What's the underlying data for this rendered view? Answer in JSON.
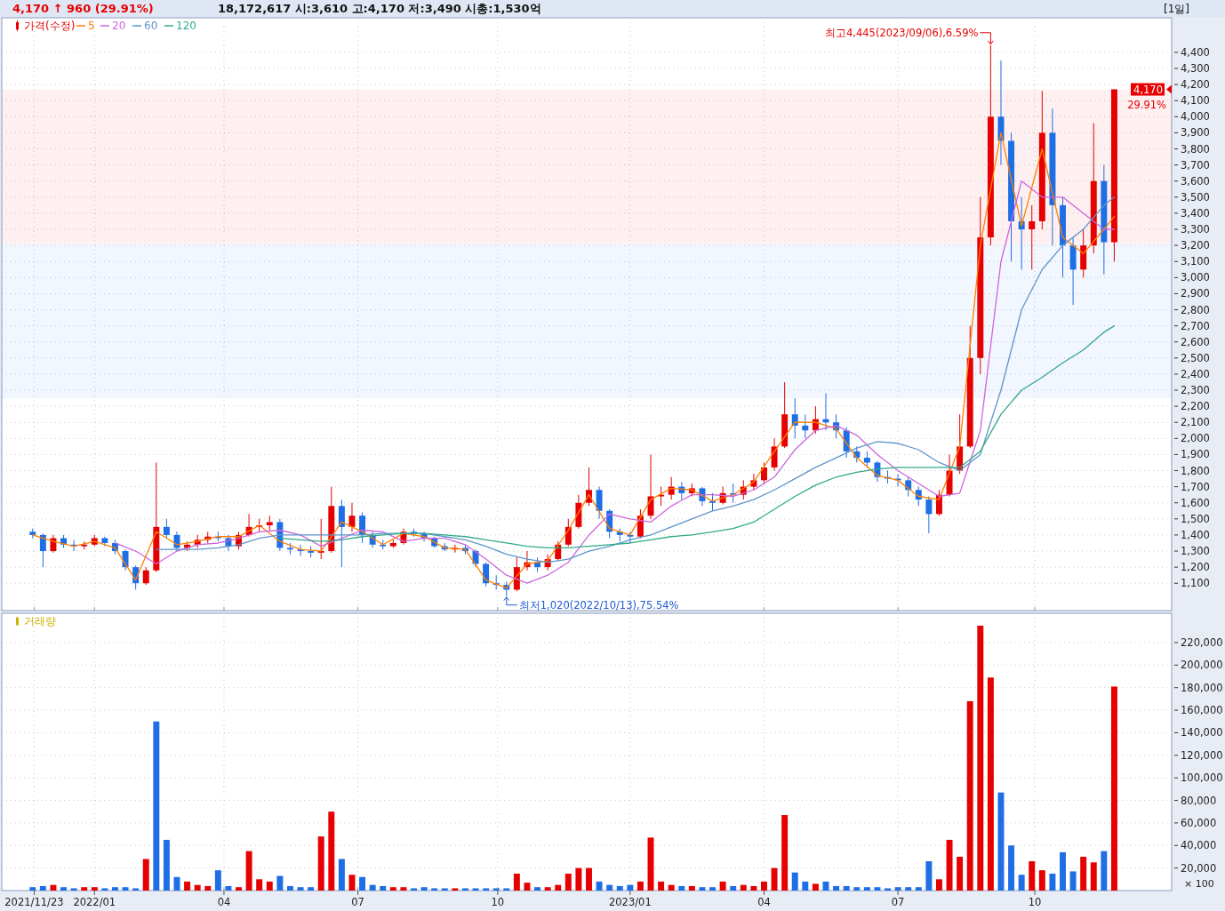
{
  "chart_data": [
    {
      "type": "candlestick",
      "title": "4,170 ↑ 960 (29.91%)",
      "subtitle": "18,172,617  시:3,610  고:4,170  저:3,490  시총:1,530억",
      "xlim": [
        "2021-11-01",
        "2024-01-05"
      ],
      "xticks": [
        {
          "value": "2021-11-23",
          "label": null
        },
        {
          "value": "2022-01-03",
          "label": null
        },
        {
          "value": "2022-04-01",
          "label": null
        },
        {
          "value": "2022-07-01",
          "label": null
        },
        {
          "value": "2022-10-04",
          "label": null
        },
        {
          "value": "2023-01-02",
          "label": null
        },
        {
          "value": "2023-04-03",
          "label": null
        },
        {
          "value": "2023-07-03",
          "label": null
        },
        {
          "value": "2023-10-04",
          "label": null
        }
      ],
      "ylim": [
        930,
        4615
      ],
      "yticks": [
        {
          "value": 1100,
          "label": "1,100"
        },
        {
          "value": 1200,
          "label": "1,200"
        },
        {
          "value": 1300,
          "label": "1,300"
        },
        {
          "value": 1400,
          "label": "1,400"
        },
        {
          "value": 1500,
          "label": "1,500"
        },
        {
          "value": 1600,
          "label": "1,600"
        },
        {
          "value": 1700,
          "label": "1,700"
        },
        {
          "value": 1800,
          "label": "1,800"
        },
        {
          "value": 1900,
          "label": "1,900"
        },
        {
          "value": 2000,
          "label": "2,000"
        },
        {
          "value": 2100,
          "label": "2,100"
        },
        {
          "value": 2200,
          "label": "2,200"
        },
        {
          "value": 2300,
          "label": "2,300"
        },
        {
          "value": 2400,
          "label": "2,400"
        },
        {
          "value": 2500,
          "label": "2,500"
        },
        {
          "value": 2600,
          "label": "2,600"
        },
        {
          "value": 2700,
          "label": "2,700"
        },
        {
          "value": 2800,
          "label": "2,800"
        },
        {
          "value": 2900,
          "label": "2,900"
        },
        {
          "value": 3000,
          "label": "3,000"
        },
        {
          "value": 3100,
          "label": "3,100"
        },
        {
          "value": 3200,
          "label": "3,200"
        },
        {
          "value": 3300,
          "label": "3,300"
        },
        {
          "value": 3400,
          "label": "3,400"
        },
        {
          "value": 3500,
          "label": "3,500"
        },
        {
          "value": 3600,
          "label": "3,600"
        },
        {
          "value": 3700,
          "label": "3,700"
        },
        {
          "value": 3800,
          "label": "3,800"
        },
        {
          "value": 3900,
          "label": "3,900"
        },
        {
          "value": 4000,
          "label": "4,000"
        },
        {
          "value": 4100,
          "label": "4,100"
        },
        {
          "value": 4200,
          "label": "4,200"
        },
        {
          "value": 4300,
          "label": "4,300"
        },
        {
          "value": 4400,
          "label": "4,400"
        }
      ],
      "tick_labels": "y",
      "grid": true,
      "legend": "top left",
      "series": [
        {
          "name": "가격(수정)",
          "color": "#e60000",
          "x": [
            "2021-11-22",
            "2021-11-29",
            "2021-12-06",
            "2021-12-13",
            "2021-12-20",
            "2021-12-27",
            "2022-01-03",
            "2022-01-10",
            "2022-01-17",
            "2022-01-24",
            "2022-01-31",
            "2022-02-07",
            "2022-02-14",
            "2022-02-21",
            "2022-02-28",
            "2022-03-07",
            "2022-03-14",
            "2022-03-21",
            "2022-03-28",
            "2022-04-04",
            "2022-04-11",
            "2022-04-18",
            "2022-04-25",
            "2022-05-02",
            "2022-05-09",
            "2022-05-16",
            "2022-05-23",
            "2022-05-30",
            "2022-06-06",
            "2022-06-13",
            "2022-06-20",
            "2022-06-27",
            "2022-07-04",
            "2022-07-11",
            "2022-07-18",
            "2022-07-25",
            "2022-08-01",
            "2022-08-08",
            "2022-08-15",
            "2022-08-22",
            "2022-08-29",
            "2022-09-05",
            "2022-09-12",
            "2022-09-19",
            "2022-09-26",
            "2022-10-03",
            "2022-10-10",
            "2022-10-17",
            "2022-10-24",
            "2022-10-31",
            "2022-11-07",
            "2022-11-14",
            "2022-11-21",
            "2022-11-28",
            "2022-12-05",
            "2022-12-12",
            "2022-12-19",
            "2022-12-26",
            "2023-01-02",
            "2023-01-09",
            "2023-01-16",
            "2023-01-23",
            "2023-01-30",
            "2023-02-06",
            "2023-02-13",
            "2023-02-20",
            "2023-02-27",
            "2023-03-06",
            "2023-03-13",
            "2023-03-20",
            "2023-03-27",
            "2023-04-03",
            "2023-04-10",
            "2023-04-17",
            "2023-04-24",
            "2023-05-01",
            "2023-05-08",
            "2023-05-15",
            "2023-05-22",
            "2023-05-29",
            "2023-06-05",
            "2023-06-12",
            "2023-06-19",
            "2023-06-26",
            "2023-07-03",
            "2023-07-10",
            "2023-07-17",
            "2023-07-24",
            "2023-07-31",
            "2023-08-07",
            "2023-08-14",
            "2023-08-21",
            "2023-08-28",
            "2023-09-04",
            "2023-09-11",
            "2023-09-18",
            "2023-09-25",
            "2023-10-02",
            "2023-10-09",
            "2023-10-16",
            "2023-10-23",
            "2023-10-30",
            "2023-11-06",
            "2023-11-13",
            "2023-11-20",
            "2023-11-27"
          ],
          "ohlc": [
            [
              1420,
              1440,
              1380,
              1400
            ],
            [
              1400,
              1410,
              1200,
              1300
            ],
            [
              1300,
              1400,
              1290,
              1380
            ],
            [
              1380,
              1400,
              1320,
              1340
            ],
            [
              1340,
              1370,
              1300,
              1330
            ],
            [
              1330,
              1360,
              1310,
              1340
            ],
            [
              1340,
              1400,
              1330,
              1380
            ],
            [
              1380,
              1390,
              1330,
              1350
            ],
            [
              1350,
              1370,
              1280,
              1300
            ],
            [
              1300,
              1310,
              1180,
              1200
            ],
            [
              1200,
              1210,
              1060,
              1100
            ],
            [
              1100,
              1200,
              1090,
              1180
            ],
            [
              1180,
              1850,
              1170,
              1450
            ],
            [
              1450,
              1500,
              1380,
              1400
            ],
            [
              1400,
              1420,
              1300,
              1320
            ],
            [
              1320,
              1360,
              1300,
              1340
            ],
            [
              1340,
              1400,
              1320,
              1370
            ],
            [
              1370,
              1420,
              1350,
              1390
            ],
            [
              1390,
              1420,
              1360,
              1380
            ],
            [
              1380,
              1400,
              1300,
              1330
            ],
            [
              1330,
              1420,
              1310,
              1400
            ],
            [
              1400,
              1530,
              1390,
              1450
            ],
            [
              1450,
              1500,
              1420,
              1460
            ],
            [
              1460,
              1520,
              1430,
              1480
            ],
            [
              1480,
              1500,
              1300,
              1320
            ],
            [
              1320,
              1350,
              1280,
              1310
            ],
            [
              1310,
              1340,
              1270,
              1300
            ],
            [
              1300,
              1330,
              1260,
              1290
            ],
            [
              1290,
              1500,
              1250,
              1300
            ],
            [
              1300,
              1700,
              1290,
              1580
            ],
            [
              1580,
              1620,
              1200,
              1450
            ],
            [
              1450,
              1600,
              1420,
              1520
            ],
            [
              1520,
              1540,
              1350,
              1400
            ],
            [
              1400,
              1420,
              1320,
              1340
            ],
            [
              1340,
              1370,
              1310,
              1330
            ],
            [
              1330,
              1370,
              1320,
              1350
            ],
            [
              1350,
              1440,
              1340,
              1420
            ],
            [
              1420,
              1440,
              1390,
              1410
            ],
            [
              1410,
              1420,
              1360,
              1380
            ],
            [
              1380,
              1390,
              1320,
              1330
            ],
            [
              1330,
              1350,
              1300,
              1310
            ],
            [
              1310,
              1340,
              1290,
              1320
            ],
            [
              1320,
              1340,
              1280,
              1300
            ],
            [
              1300,
              1310,
              1200,
              1220
            ],
            [
              1220,
              1230,
              1080,
              1100
            ],
            [
              1100,
              1150,
              1060,
              1090
            ],
            [
              1090,
              1110,
              1020,
              1060
            ],
            [
              1060,
              1260,
              1050,
              1200
            ],
            [
              1200,
              1300,
              1180,
              1230
            ],
            [
              1230,
              1260,
              1170,
              1200
            ],
            [
              1200,
              1280,
              1180,
              1250
            ],
            [
              1250,
              1360,
              1240,
              1340
            ],
            [
              1340,
              1500,
              1330,
              1450
            ],
            [
              1450,
              1650,
              1440,
              1600
            ],
            [
              1600,
              1820,
              1580,
              1680
            ],
            [
              1680,
              1700,
              1500,
              1550
            ],
            [
              1550,
              1560,
              1380,
              1420
            ],
            [
              1420,
              1440,
              1360,
              1400
            ],
            [
              1400,
              1420,
              1350,
              1390
            ],
            [
              1390,
              1560,
              1380,
              1520
            ],
            [
              1520,
              1900,
              1500,
              1640
            ],
            [
              1640,
              1700,
              1580,
              1650
            ],
            [
              1650,
              1760,
              1620,
              1700
            ],
            [
              1700,
              1730,
              1620,
              1660
            ],
            [
              1660,
              1720,
              1640,
              1690
            ],
            [
              1690,
              1700,
              1580,
              1610
            ],
            [
              1610,
              1660,
              1550,
              1600
            ],
            [
              1600,
              1700,
              1590,
              1660
            ],
            [
              1660,
              1720,
              1600,
              1650
            ],
            [
              1650,
              1740,
              1620,
              1700
            ],
            [
              1700,
              1780,
              1680,
              1740
            ],
            [
              1740,
              1850,
              1720,
              1820
            ],
            [
              1820,
              2000,
              1800,
              1950
            ],
            [
              1950,
              2350,
              1940,
              2150
            ],
            [
              2150,
              2250,
              2000,
              2080
            ],
            [
              2080,
              2150,
              2000,
              2050
            ],
            [
              2050,
              2200,
              2030,
              2120
            ],
            [
              2120,
              2280,
              2050,
              2100
            ],
            [
              2100,
              2150,
              2000,
              2050
            ],
            [
              2050,
              2070,
              1880,
              1920
            ],
            [
              1920,
              1950,
              1850,
              1880
            ],
            [
              1880,
              1920,
              1820,
              1850
            ],
            [
              1850,
              1860,
              1730,
              1760
            ],
            [
              1760,
              1800,
              1720,
              1750
            ],
            [
              1750,
              1780,
              1700,
              1740
            ],
            [
              1740,
              1760,
              1640,
              1680
            ],
            [
              1680,
              1700,
              1580,
              1620
            ],
            [
              1620,
              1640,
              1410,
              1530
            ],
            [
              1530,
              1680,
              1520,
              1650
            ],
            [
              1650,
              1900,
              1640,
              1800
            ],
            [
              1800,
              2150,
              1780,
              1950
            ],
            [
              1950,
              2700,
              1940,
              2500
            ],
            [
              2500,
              3500,
              2400,
              3250
            ],
            [
              3250,
              4445,
              3200,
              4000
            ],
            [
              4000,
              4350,
              3700,
              3850
            ],
            [
              3850,
              3900,
              3100,
              3350
            ],
            [
              3350,
              3500,
              3050,
              3300
            ],
            [
              3300,
              3450,
              3050,
              3350
            ],
            [
              3350,
              4160,
              3300,
              3900
            ],
            [
              3900,
              4050,
              3200,
              3450
            ],
            [
              3450,
              3500,
              3000,
              3200
            ],
            [
              3200,
              3250,
              2830,
              3050
            ],
            [
              3050,
              3300,
              3000,
              3200
            ],
            [
              3200,
              3960,
              3150,
              3600
            ],
            [
              3600,
              3700,
              3020,
              3220
            ],
            [
              3220,
              4170,
              3100,
              4170
            ]
          ],
          "colors": [
            "#1e6ee6",
            "#1e6ee6",
            "#e60000",
            "#1e6ee6",
            "#1e6ee6",
            "#e60000",
            "#e60000",
            "#1e6ee6",
            "#1e6ee6",
            "#1e6ee6",
            "#1e6ee6",
            "#e60000",
            "#e60000",
            "#1e6ee6",
            "#1e6ee6",
            "#e60000",
            "#e60000",
            "#e60000",
            "#1e6ee6",
            "#1e6ee6",
            "#e60000",
            "#e60000",
            "#e60000",
            "#e60000",
            "#1e6ee6",
            "#1e6ee6",
            "#1e6ee6",
            "#1e6ee6",
            "#e60000",
            "#e60000",
            "#1e6ee6",
            "#e60000",
            "#1e6ee6",
            "#1e6ee6",
            "#1e6ee6",
            "#e60000",
            "#e60000",
            "#1e6ee6",
            "#1e6ee6",
            "#1e6ee6",
            "#1e6ee6",
            "#e60000",
            "#1e6ee6",
            "#1e6ee6",
            "#1e6ee6",
            "#1e6ee6",
            "#1e6ee6",
            "#e60000",
            "#e60000",
            "#1e6ee6",
            "#e60000",
            "#e60000",
            "#e60000",
            "#e60000",
            "#e60000",
            "#1e6ee6",
            "#1e6ee6",
            "#1e6ee6",
            "#1e6ee6",
            "#e60000",
            "#e60000",
            "#e60000",
            "#e60000",
            "#1e6ee6",
            "#e60000",
            "#1e6ee6",
            "#1e6ee6",
            "#e60000",
            "#1e6ee6",
            "#e60000",
            "#e60000",
            "#e60000",
            "#e60000",
            "#e60000",
            "#1e6ee6",
            "#1e6ee6",
            "#e60000",
            "#1e6ee6",
            "#1e6ee6",
            "#1e6ee6",
            "#1e6ee6",
            "#1e6ee6",
            "#1e6ee6",
            "#1e6ee6",
            "#1e6ee6",
            "#1e6ee6",
            "#1e6ee6",
            "#1e6ee6",
            "#e60000",
            "#e60000",
            "#e60000",
            "#e60000",
            "#e60000",
            "#e60000",
            "#1e6ee6",
            "#1e6ee6",
            "#1e6ee6",
            "#e60000",
            "#e60000",
            "#1e6ee6",
            "#1e6ee6",
            "#1e6ee6",
            "#e60000",
            "#e60000",
            "#1e6ee6",
            "#e60000"
          ]
        },
        {
          "name": "5",
          "type": "line",
          "color": "#ff8000",
          "x": [
            "2021-11-22",
            "2021-12-06",
            "2021-12-20",
            "2022-01-03",
            "2022-01-17",
            "2022-01-31",
            "2022-02-14",
            "2022-02-28",
            "2022-03-14",
            "2022-03-28",
            "2022-04-11",
            "2022-04-25",
            "2022-05-09",
            "2022-05-23",
            "2022-06-06",
            "2022-06-20",
            "2022-07-04",
            "2022-07-18",
            "2022-08-01",
            "2022-08-15",
            "2022-08-29",
            "2022-09-12",
            "2022-09-26",
            "2022-10-10",
            "2022-10-24",
            "2022-11-07",
            "2022-11-21",
            "2022-12-05",
            "2022-12-19",
            "2023-01-02",
            "2023-01-16",
            "2023-01-30",
            "2023-02-13",
            "2023-02-27",
            "2023-03-13",
            "2023-03-27",
            "2023-04-10",
            "2023-04-24",
            "2023-05-08",
            "2023-05-22",
            "2023-06-05",
            "2023-06-19",
            "2023-07-03",
            "2023-07-17",
            "2023-07-31",
            "2023-08-14",
            "2023-08-28",
            "2023-09-11",
            "2023-09-25",
            "2023-10-09",
            "2023-10-23",
            "2023-11-06",
            "2023-11-20",
            "2023-11-27"
          ],
          "values": [
            1400,
            1360,
            1330,
            1360,
            1320,
            1120,
            1420,
            1340,
            1360,
            1390,
            1390,
            1460,
            1360,
            1310,
            1300,
            1480,
            1420,
            1340,
            1410,
            1390,
            1320,
            1310,
            1120,
            1070,
            1220,
            1240,
            1430,
            1650,
            1440,
            1400,
            1620,
            1690,
            1680,
            1610,
            1650,
            1730,
            1920,
            2100,
            2100,
            2060,
            1880,
            1770,
            1740,
            1640,
            1620,
            1950,
            3200,
            3900,
            3320,
            3800,
            3250,
            3150,
            3300,
            3380
          ]
        },
        {
          "name": "20",
          "type": "line",
          "color": "#cc66dd",
          "x": [
            "2022-01-17",
            "2022-01-31",
            "2022-02-14",
            "2022-02-28",
            "2022-03-14",
            "2022-03-28",
            "2022-04-11",
            "2022-04-25",
            "2022-05-09",
            "2022-05-23",
            "2022-06-06",
            "2022-06-20",
            "2022-07-04",
            "2022-07-18",
            "2022-08-01",
            "2022-08-15",
            "2022-08-29",
            "2022-09-12",
            "2022-09-26",
            "2022-10-10",
            "2022-10-24",
            "2022-11-07",
            "2022-11-21",
            "2022-12-05",
            "2022-12-19",
            "2023-01-02",
            "2023-01-16",
            "2023-01-30",
            "2023-02-13",
            "2023-02-27",
            "2023-03-13",
            "2023-03-27",
            "2023-04-10",
            "2023-04-24",
            "2023-05-08",
            "2023-05-22",
            "2023-06-05",
            "2023-06-19",
            "2023-07-03",
            "2023-07-17",
            "2023-07-31",
            "2023-08-14",
            "2023-08-28",
            "2023-09-11",
            "2023-09-25",
            "2023-10-09",
            "2023-10-23",
            "2023-11-06",
            "2023-11-20",
            "2023-11-27"
          ],
          "values": [
            1350,
            1300,
            1220,
            1300,
            1340,
            1350,
            1380,
            1420,
            1430,
            1400,
            1330,
            1380,
            1430,
            1420,
            1360,
            1380,
            1380,
            1340,
            1250,
            1150,
            1100,
            1150,
            1230,
            1400,
            1530,
            1500,
            1480,
            1580,
            1650,
            1650,
            1640,
            1680,
            1760,
            1930,
            2050,
            2080,
            2020,
            1900,
            1800,
            1720,
            1640,
            1660,
            2050,
            3100,
            3600,
            3500,
            3500,
            3400,
            3300,
            3300
          ]
        },
        {
          "name": "60",
          "type": "line",
          "color": "#5f95cc",
          "x": [
            "2022-02-14",
            "2022-02-28",
            "2022-03-14",
            "2022-03-28",
            "2022-04-11",
            "2022-04-25",
            "2022-05-09",
            "2022-05-23",
            "2022-06-06",
            "2022-06-20",
            "2022-07-04",
            "2022-07-18",
            "2022-08-01",
            "2022-08-15",
            "2022-08-29",
            "2022-09-12",
            "2022-09-26",
            "2022-10-10",
            "2022-10-24",
            "2022-11-07",
            "2022-11-21",
            "2022-12-05",
            "2022-12-19",
            "2023-01-02",
            "2023-01-16",
            "2023-01-30",
            "2023-02-13",
            "2023-02-27",
            "2023-03-13",
            "2023-03-27",
            "2023-04-10",
            "2023-04-24",
            "2023-05-08",
            "2023-05-22",
            "2023-06-05",
            "2023-06-19",
            "2023-07-03",
            "2023-07-17",
            "2023-07-31",
            "2023-08-14",
            "2023-08-28",
            "2023-09-11",
            "2023-09-25",
            "2023-10-09",
            "2023-10-23",
            "2023-11-06",
            "2023-11-20",
            "2023-11-27"
          ],
          "values": [
            1310,
            1310,
            1310,
            1320,
            1340,
            1380,
            1400,
            1400,
            1400,
            1400,
            1400,
            1410,
            1410,
            1410,
            1390,
            1370,
            1330,
            1280,
            1250,
            1230,
            1250,
            1300,
            1330,
            1370,
            1400,
            1450,
            1500,
            1550,
            1580,
            1620,
            1680,
            1750,
            1820,
            1880,
            1940,
            1980,
            1970,
            1930,
            1850,
            1800,
            1900,
            2300,
            2800,
            3050,
            3200,
            3300,
            3450,
            3500
          ]
        },
        {
          "name": "120",
          "type": "line",
          "color": "#2fa98a",
          "x": [
            "2022-05-09",
            "2022-05-23",
            "2022-06-06",
            "2022-06-20",
            "2022-07-04",
            "2022-07-18",
            "2022-08-01",
            "2022-08-15",
            "2022-08-29",
            "2022-09-12",
            "2022-09-26",
            "2022-10-10",
            "2022-10-24",
            "2022-11-07",
            "2022-11-21",
            "2022-12-05",
            "2022-12-19",
            "2023-01-02",
            "2023-01-16",
            "2023-01-30",
            "2023-02-13",
            "2023-02-27",
            "2023-03-13",
            "2023-03-27",
            "2023-04-10",
            "2023-04-24",
            "2023-05-08",
            "2023-05-22",
            "2023-06-05",
            "2023-06-19",
            "2023-07-03",
            "2023-07-17",
            "2023-07-31",
            "2023-08-14",
            "2023-08-28",
            "2023-09-11",
            "2023-09-25",
            "2023-10-09",
            "2023-10-23",
            "2023-11-06",
            "2023-11-20",
            "2023-11-27"
          ],
          "values": [
            1380,
            1370,
            1360,
            1370,
            1390,
            1400,
            1410,
            1410,
            1400,
            1390,
            1370,
            1350,
            1330,
            1320,
            1320,
            1330,
            1340,
            1350,
            1370,
            1390,
            1400,
            1420,
            1440,
            1480,
            1560,
            1640,
            1710,
            1760,
            1790,
            1810,
            1820,
            1820,
            1820,
            1820,
            1920,
            2150,
            2300,
            2380,
            2470,
            2550,
            2660,
            2700
          ]
        }
      ],
      "bands": [
        {
          "axis": "y",
          "from": 3210,
          "to": 4170,
          "color": "#e60000"
        },
        {
          "axis": "y",
          "from": 2250,
          "to": 3210,
          "color": "#1e6ee6"
        }
      ],
      "annotations": [
        {
          "text": "최고4,445(2023/09/06),6.59%",
          "x": "2023-09-04",
          "y": 4445
        },
        {
          "text": "최저1,020(2022/10/13),75.54%",
          "x": "2022-10-10",
          "y": 1020
        },
        {
          "text": "4,170",
          "x": "2023-11-27",
          "y": 4170
        },
        {
          "text": "29.91%",
          "x": "2023-11-27",
          "y": 4170
        },
        "[1일]"
      ]
    },
    {
      "type": "bar",
      "ylabel": "× 100",
      "legend": "top left",
      "grid": true,
      "xlim": [
        "2021-11-01",
        "2024-01-05"
      ],
      "xticks": [
        {
          "value": "2021-11-23",
          "label": "2021/11/23"
        },
        {
          "value": "2022-01-03",
          "label": "2022/01"
        },
        {
          "value": "2022-04-01",
          "label": "04"
        },
        {
          "value": "2022-07-01",
          "label": "07"
        },
        {
          "value": "2022-10-04",
          "label": "10"
        },
        {
          "value": "2023-01-02",
          "label": "2023/01"
        },
        {
          "value": "2023-04-03",
          "label": "04"
        },
        {
          "value": "2023-07-03",
          "label": "07"
        },
        {
          "value": "2023-10-04",
          "label": "10"
        }
      ],
      "ylim": [
        0,
        246000
      ],
      "yticks": [
        {
          "value": 20000,
          "label": "20,000"
        },
        {
          "value": 40000,
          "label": "40,000"
        },
        {
          "value": 60000,
          "label": "60,000"
        },
        {
          "value": 80000,
          "label": "80,000"
        },
        {
          "value": 100000,
          "label": "100,000"
        },
        {
          "value": 120000,
          "label": "120,000"
        },
        {
          "value": 140000,
          "label": "140,000"
        },
        {
          "value": 160000,
          "label": "160,000"
        },
        {
          "value": 180000,
          "label": "180,000"
        },
        {
          "value": 200000,
          "label": "200,000"
        },
        {
          "value": 220000,
          "label": "220,000"
        }
      ],
      "series": [
        {
          "name": "거래량",
          "color": "#c8b400",
          "x": [
            "2021-11-22",
            "2021-11-29",
            "2021-12-06",
            "2021-12-13",
            "2021-12-20",
            "2021-12-27",
            "2022-01-03",
            "2022-01-10",
            "2022-01-17",
            "2022-01-24",
            "2022-01-31",
            "2022-02-07",
            "2022-02-14",
            "2022-02-21",
            "2022-02-28",
            "2022-03-07",
            "2022-03-14",
            "2022-03-21",
            "2022-03-28",
            "2022-04-04",
            "2022-04-11",
            "2022-04-18",
            "2022-04-25",
            "2022-05-02",
            "2022-05-09",
            "2022-05-16",
            "2022-05-23",
            "2022-05-30",
            "2022-06-06",
            "2022-06-13",
            "2022-06-20",
            "2022-06-27",
            "2022-07-04",
            "2022-07-11",
            "2022-07-18",
            "2022-07-25",
            "2022-08-01",
            "2022-08-08",
            "2022-08-15",
            "2022-08-22",
            "2022-08-29",
            "2022-09-05",
            "2022-09-12",
            "2022-09-19",
            "2022-09-26",
            "2022-10-03",
            "2022-10-10",
            "2022-10-17",
            "2022-10-24",
            "2022-10-31",
            "2022-11-07",
            "2022-11-14",
            "2022-11-21",
            "2022-11-28",
            "2022-12-05",
            "2022-12-12",
            "2022-12-19",
            "2022-12-26",
            "2023-01-02",
            "2023-01-09",
            "2023-01-16",
            "2023-01-23",
            "2023-01-30",
            "2023-02-06",
            "2023-02-13",
            "2023-02-20",
            "2023-02-27",
            "2023-03-06",
            "2023-03-13",
            "2023-03-20",
            "2023-03-27",
            "2023-04-03",
            "2023-04-10",
            "2023-04-17",
            "2023-04-24",
            "2023-05-01",
            "2023-05-08",
            "2023-05-15",
            "2023-05-22",
            "2023-05-29",
            "2023-06-05",
            "2023-06-12",
            "2023-06-19",
            "2023-06-26",
            "2023-07-03",
            "2023-07-10",
            "2023-07-17",
            "2023-07-24",
            "2023-07-31",
            "2023-08-07",
            "2023-08-14",
            "2023-08-21",
            "2023-08-28",
            "2023-09-04",
            "2023-09-11",
            "2023-09-18",
            "2023-09-25",
            "2023-10-02",
            "2023-10-09",
            "2023-10-16",
            "2023-10-23",
            "2023-10-30",
            "2023-11-06",
            "2023-11-13",
            "2023-11-20",
            "2023-11-27"
          ],
          "values": [
            3000,
            4000,
            5000,
            3000,
            2000,
            3000,
            3000,
            2000,
            3000,
            3000,
            2000,
            28000,
            150000,
            45000,
            12000,
            8000,
            5000,
            4000,
            18000,
            4000,
            3000,
            35000,
            10000,
            8000,
            13000,
            4000,
            3000,
            3000,
            48000,
            70000,
            28000,
            14000,
            12000,
            5000,
            4000,
            3000,
            3000,
            2000,
            3000,
            2000,
            2000,
            2000,
            2000,
            2000,
            2000,
            2000,
            2000,
            15000,
            7000,
            3000,
            3000,
            5000,
            15000,
            20000,
            20000,
            8000,
            5000,
            4000,
            5000,
            8000,
            47000,
            8000,
            5000,
            4000,
            4000,
            3000,
            3000,
            8000,
            4000,
            5000,
            4000,
            8000,
            20000,
            67000,
            16000,
            8000,
            6000,
            8000,
            4000,
            4000,
            3000,
            3000,
            3000,
            2000,
            3000,
            3000,
            3000,
            26000,
            10000,
            45000,
            30000,
            168000,
            235000,
            189000,
            87000,
            40000,
            14000,
            26000,
            18000,
            15000,
            34000,
            17000,
            30000,
            25000,
            35000,
            181000
          ],
          "colors": [
            "#1e6ee6",
            "#1e6ee6",
            "#e60000",
            "#1e6ee6",
            "#1e6ee6",
            "#e60000",
            "#e60000",
            "#1e6ee6",
            "#1e6ee6",
            "#1e6ee6",
            "#1e6ee6",
            "#e60000",
            "#1e6ee6",
            "#1e6ee6",
            "#1e6ee6",
            "#e60000",
            "#e60000",
            "#e60000",
            "#1e6ee6",
            "#1e6ee6",
            "#e60000",
            "#e60000",
            "#e60000",
            "#e60000",
            "#1e6ee6",
            "#1e6ee6",
            "#1e6ee6",
            "#1e6ee6",
            "#e60000",
            "#e60000",
            "#1e6ee6",
            "#e60000",
            "#1e6ee6",
            "#1e6ee6",
            "#1e6ee6",
            "#e60000",
            "#e60000",
            "#1e6ee6",
            "#1e6ee6",
            "#1e6ee6",
            "#1e6ee6",
            "#e60000",
            "#1e6ee6",
            "#1e6ee6",
            "#1e6ee6",
            "#1e6ee6",
            "#1e6ee6",
            "#e60000",
            "#e60000",
            "#1e6ee6",
            "#e60000",
            "#e60000",
            "#e60000",
            "#e60000",
            "#e60000",
            "#1e6ee6",
            "#1e6ee6",
            "#1e6ee6",
            "#1e6ee6",
            "#e60000",
            "#e60000",
            "#e60000",
            "#e60000",
            "#1e6ee6",
            "#e60000",
            "#1e6ee6",
            "#1e6ee6",
            "#e60000",
            "#1e6ee6",
            "#e60000",
            "#e60000",
            "#e60000",
            "#e60000",
            "#e60000",
            "#1e6ee6",
            "#1e6ee6",
            "#e60000",
            "#1e6ee6",
            "#1e6ee6",
            "#1e6ee6",
            "#1e6ee6",
            "#1e6ee6",
            "#1e6ee6",
            "#1e6ee6",
            "#1e6ee6",
            "#1e6ee6",
            "#1e6ee6",
            "#1e6ee6",
            "#e60000",
            "#e60000",
            "#e60000",
            "#e60000",
            "#e60000",
            "#e60000",
            "#1e6ee6",
            "#1e6ee6",
            "#1e6ee6",
            "#e60000",
            "#e60000",
            "#1e6ee6",
            "#1e6ee6",
            "#1e6ee6",
            "#e60000",
            "#e60000",
            "#1e6ee6",
            "#e60000"
          ]
        }
      ]
    }
  ]
}
